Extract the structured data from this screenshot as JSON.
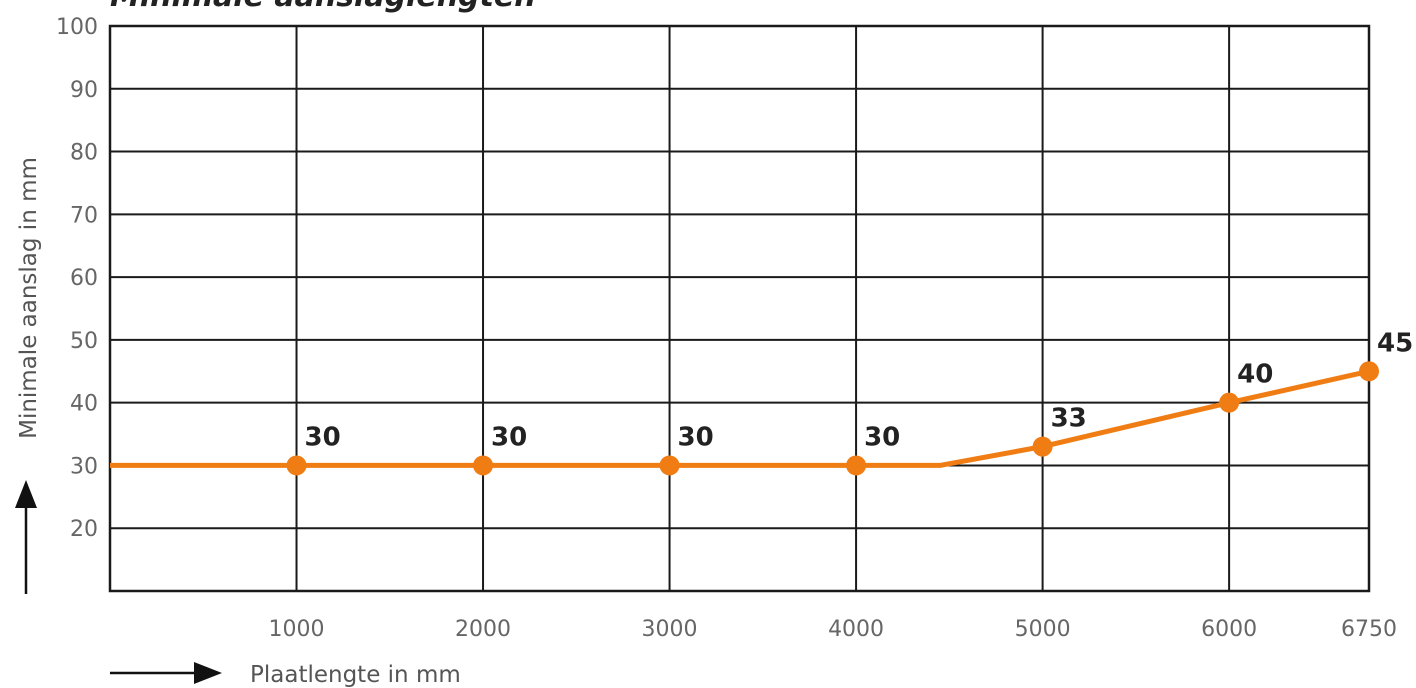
{
  "chart_data": {
    "type": "line",
    "title": "Minimale aanslaglengten",
    "xlabel": "Plaatlengte in mm",
    "ylabel": "Minimale aanslag in mm",
    "x_ticks": [
      "1000",
      "2000",
      "3000",
      "4000",
      "5000",
      "6000",
      "6750"
    ],
    "x_tick_values": [
      1000,
      2000,
      3000,
      4000,
      5000,
      6000,
      6750
    ],
    "y_ticks": [
      "20",
      "30",
      "40",
      "50",
      "60",
      "70",
      "80",
      "90",
      "100"
    ],
    "y_tick_values": [
      20,
      30,
      40,
      50,
      60,
      70,
      80,
      90,
      100
    ],
    "xlim": [
      0,
      6750
    ],
    "ylim": [
      10,
      100
    ],
    "grid": true,
    "series": [
      {
        "line_x": [
          0,
          1000,
          2000,
          3000,
          4000,
          4450,
          5000,
          6000,
          6750
        ],
        "line_y": [
          30,
          30,
          30,
          30,
          30,
          30,
          33,
          40,
          45
        ],
        "marker_x": [
          1000,
          2000,
          3000,
          4000,
          5000,
          6000,
          6750
        ],
        "marker_y": [
          30,
          30,
          30,
          30,
          33,
          40,
          45
        ],
        "labels": [
          "30",
          "30",
          "30",
          "30",
          "33",
          "40",
          "45"
        ],
        "color": "#f07d14"
      }
    ]
  }
}
